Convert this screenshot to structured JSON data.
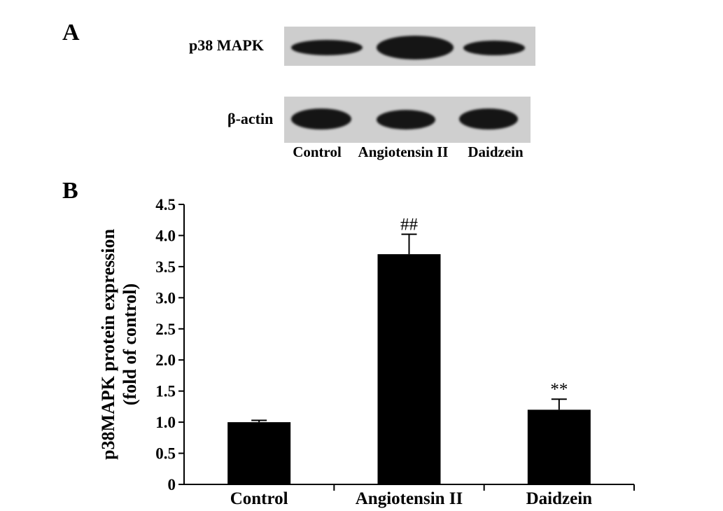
{
  "panels": {
    "a_label": "A",
    "b_label": "B"
  },
  "blot": {
    "rows": [
      {
        "label": "p38 MAPK",
        "band_intensity": [
          0.8,
          1.0,
          0.75
        ]
      },
      {
        "label": "β-actin",
        "band_intensity": [
          0.9,
          0.85,
          0.9
        ]
      }
    ],
    "lanes": [
      "Control",
      "Angiotensin II",
      "Daidzein"
    ]
  },
  "chart_data": {
    "type": "bar",
    "categories": [
      "Control",
      "Angiotensin II",
      "Daidzein"
    ],
    "values": [
      1.0,
      3.7,
      1.2
    ],
    "errors": [
      0.03,
      0.32,
      0.17
    ],
    "annotations": [
      "",
      "##",
      "**"
    ],
    "title": "",
    "xlabel": "",
    "ylabel": [
      "p38MAPK protein expression",
      "(fold of control)"
    ],
    "ylim": [
      0,
      4.5
    ],
    "yticks": [
      "0",
      "0.5",
      "1.0",
      "1.5",
      "2.0",
      "2.5",
      "3.0",
      "3.5",
      "4.0",
      "4.5"
    ],
    "bar_color": "#000000",
    "grid": false,
    "legend": "none"
  }
}
